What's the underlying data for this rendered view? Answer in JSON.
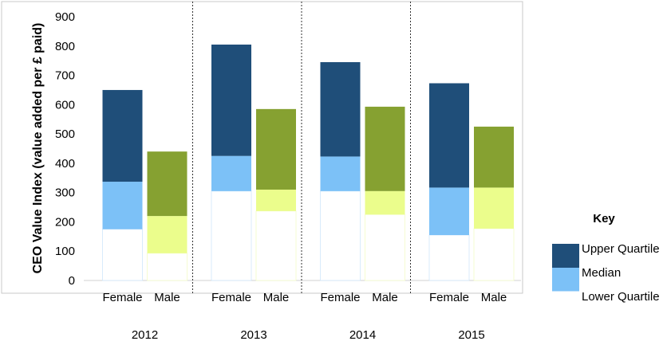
{
  "chart_data": {
    "type": "bar",
    "subtype": "floating-stacked-quartile",
    "ylabel": "CEO Value Index (value added per £ paid)",
    "ylim": [
      0,
      900
    ],
    "yticks": [
      "0",
      "100",
      "200",
      "300",
      "400",
      "500",
      "600",
      "700",
      "800",
      "900"
    ],
    "groups": [
      "2012",
      "2013",
      "2014",
      "2015"
    ],
    "categories": [
      "Female",
      "Male"
    ],
    "bars": [
      {
        "year": "2012",
        "gender": "Female",
        "lower": 175,
        "median": 337,
        "upper": 650
      },
      {
        "year": "2012",
        "gender": "Male",
        "lower": 93,
        "median": 220,
        "upper": 440
      },
      {
        "year": "2013",
        "gender": "Female",
        "lower": 305,
        "median": 425,
        "upper": 805
      },
      {
        "year": "2013",
        "gender": "Male",
        "lower": 237,
        "median": 310,
        "upper": 585
      },
      {
        "year": "2014",
        "gender": "Female",
        "lower": 305,
        "median": 423,
        "upper": 745
      },
      {
        "year": "2014",
        "gender": "Male",
        "lower": 225,
        "median": 305,
        "upper": 593
      },
      {
        "year": "2015",
        "gender": "Female",
        "lower": 155,
        "median": 317,
        "upper": 673
      },
      {
        "year": "2015",
        "gender": "Male",
        "lower": 177,
        "median": 317,
        "upper": 525
      }
    ],
    "colors": {
      "female_upper": "#1f4e79",
      "female_median": "#7cc1f7",
      "male_upper": "#86a131",
      "male_median": "#ebfd8c"
    },
    "legend": {
      "title": "Key",
      "items": [
        "Upper Quartile",
        "Median",
        "Lower Quartile"
      ],
      "colors": [
        "#1f4e79",
        "#7cc1f7",
        "#ffffff"
      ],
      "placement": "right"
    },
    "grid": false
  }
}
